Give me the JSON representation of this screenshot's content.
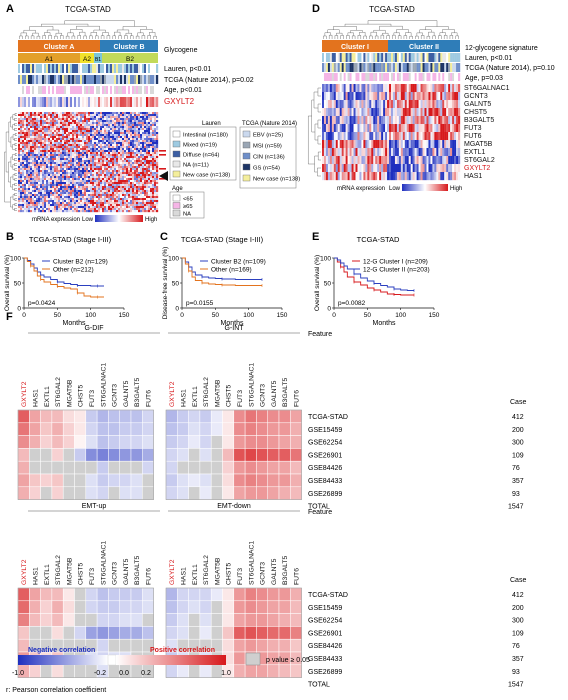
{
  "panels": {
    "A": {
      "letter": "A",
      "title": "TCGA-STAD",
      "cluster_a": "Cluster A",
      "cluster_b": "Cluster B",
      "sub_a1": "A1",
      "sub_a2": "A2",
      "sub_b1": "B1",
      "sub_b2": "B2",
      "row_labels": [
        "Glycogene",
        "Lauren, p<0.01",
        "TCGA (Nature 2014), p=0.02",
        "Age, p<0.01",
        "GXYLT2"
      ],
      "legend_lauren_title": "Lauren",
      "legend_lauren": [
        "Intestinal (n=180)",
        "Mixed (n=19)",
        "Diffuse (n=64)",
        "NA (n=11)",
        "New case (n=138)"
      ],
      "legend_tcga_title": "TCGA (Nature 2014)",
      "legend_tcga": [
        "EBV (n=25)",
        "MSI (n=59)",
        "CIN (n=136)",
        "GS (n=54)",
        "New case (n=138)"
      ],
      "legend_age_title": "Age",
      "legend_age": [
        "<65",
        "≥65",
        "NA"
      ],
      "scale_label": "mRNA expression",
      "scale_low": "Low",
      "scale_high": "High"
    },
    "B": {
      "letter": "B",
      "title": "TCGA-STAD (Stage I-III)",
      "ylabel": "Overall survival (%)",
      "xlabel": "Months",
      "legend": [
        "Cluster B2 (n=129)",
        "Other (n=212)"
      ],
      "pvalue": "p=0.0424"
    },
    "C": {
      "letter": "C",
      "title": "TCGA-STAD (Stage I-III)",
      "ylabel": "Disease-free survival (%)",
      "xlabel": "Months",
      "legend": [
        "Cluster B2 (n=109)",
        "Other (n=169)"
      ],
      "pvalue": "p=0.0155"
    },
    "D": {
      "letter": "D",
      "title": "TCGA-STAD",
      "cluster_1": "Cluster I",
      "cluster_2": "Cluster II",
      "row_labels": [
        "12-glycogene signature",
        "Lauren, p<0.01",
        "TCGA (Nature 2014), p=0.10",
        "Age, p=0.03"
      ],
      "genes": [
        "ST6GALNAC1",
        "GCNT3",
        "GALNT5",
        "CHST5",
        "B3GALT5",
        "FUT3",
        "FUT6",
        "MGAT5B",
        "EXTL1",
        "ST6GAL2",
        "GXYLT2",
        "HAS1"
      ],
      "scale_label": "mRNA expression",
      "scale_low": "Low",
      "scale_high": "High"
    },
    "E": {
      "letter": "E",
      "title": "TCGA-STAD",
      "ylabel": "Overall survival (%)",
      "xlabel": "Months",
      "legend": [
        "12-G Cluster I (n=209)",
        "12-G Cluster II (n=203)"
      ],
      "pvalue": "p=0.0082"
    },
    "F": {
      "letter": "F",
      "feature_label": "Feature",
      "case_label": "Case",
      "genes": [
        "GXYLT2",
        "HAS1",
        "EXTL1",
        "ST6GAL2",
        "MGAT5B",
        "CHST5",
        "FUT3",
        "ST6GALNAC1",
        "GCNT3",
        "GALNT5",
        "B3GALT5",
        "FUT6"
      ],
      "datasets": [
        "TCGA-STAD",
        "GSE15459",
        "GSE62254",
        "GSE26901",
        "GSE84426",
        "GSE84433",
        "GSE26899"
      ],
      "cases": [
        "412",
        "200",
        "300",
        "109",
        "76",
        "357",
        "93"
      ],
      "total_label": "TOTAL",
      "total_value": "1547",
      "top_left": "G-DIF",
      "top_right": "G-INT",
      "bottom_left": "EMT-up",
      "bottom_right": "EMT-down",
      "neg_label": "Negative correlation",
      "pos_label": "Positive correlation",
      "ticks": [
        "-1.0",
        "-0.2",
        "0.0",
        "0.2",
        "1.0"
      ],
      "pval_label": "p value ≥ 0.05",
      "footnote": "r: Pearson correlation coefficient"
    }
  },
  "colors": {
    "red": "#d7191c",
    "blue": "#2b3fbf",
    "orange": "#e3731e",
    "steel": "#2f7db8",
    "lime": "#c2da5a",
    "yellow": "#f2e22a",
    "insig": "#cfcfcf"
  },
  "chart_data": [
    {
      "type": "line",
      "title": "TCGA-STAD (Stage I-III)",
      "xlabel": "Months",
      "ylabel": "Overall survival (%)",
      "xlim": [
        0,
        150
      ],
      "ylim": [
        0,
        100
      ],
      "xticks": [
        0,
        50,
        100,
        150
      ],
      "yticks": [
        0,
        50,
        100
      ],
      "series": [
        {
          "name": "Cluster B2 (n=129)",
          "x": [
            0,
            5,
            10,
            15,
            20,
            25,
            30,
            40,
            50,
            60,
            70,
            80,
            90,
            100,
            110,
            120
          ],
          "y": [
            100,
            95,
            88,
            80,
            72,
            66,
            62,
            57,
            52,
            49,
            47,
            45,
            45,
            44,
            44,
            44
          ]
        },
        {
          "name": "Other (n=212)",
          "x": [
            0,
            5,
            10,
            15,
            20,
            25,
            30,
            40,
            50,
            60,
            70,
            80,
            90,
            100,
            110,
            120
          ],
          "y": [
            100,
            93,
            84,
            74,
            64,
            57,
            52,
            47,
            43,
            40,
            38,
            30,
            24,
            22,
            22,
            22
          ]
        }
      ],
      "pvalue": "p=0.0424"
    },
    {
      "type": "line",
      "title": "TCGA-STAD (Stage I-III)",
      "xlabel": "Months",
      "ylabel": "Disease-free survival (%)",
      "xlim": [
        0,
        150
      ],
      "ylim": [
        0,
        100
      ],
      "xticks": [
        0,
        50,
        100,
        150
      ],
      "yticks": [
        0,
        50,
        100
      ],
      "series": [
        {
          "name": "Cluster B2 (n=109)",
          "x": [
            0,
            5,
            10,
            15,
            20,
            30,
            40,
            50,
            60,
            80,
            100,
            120
          ],
          "y": [
            100,
            92,
            82,
            72,
            66,
            62,
            60,
            59,
            58,
            57,
            57,
            57
          ]
        },
        {
          "name": "Other (n=169)",
          "x": [
            0,
            5,
            10,
            15,
            20,
            30,
            40,
            50,
            60,
            80,
            100,
            120
          ],
          "y": [
            100,
            88,
            74,
            62,
            55,
            50,
            48,
            47,
            46,
            45,
            45,
            45
          ]
        }
      ],
      "pvalue": "p=0.0155"
    },
    {
      "type": "line",
      "title": "TCGA-STAD",
      "xlabel": "Months",
      "ylabel": "Overall survival (%)",
      "xlim": [
        0,
        150
      ],
      "ylim": [
        0,
        100
      ],
      "xticks": [
        0,
        50,
        100,
        150
      ],
      "yticks": [
        0,
        50,
        100
      ],
      "series": [
        {
          "name": "12-G Cluster I (n=209)",
          "x": [
            0,
            5,
            10,
            15,
            20,
            30,
            40,
            50,
            60,
            70,
            80,
            90,
            100,
            110,
            120
          ],
          "y": [
            100,
            92,
            82,
            72,
            62,
            52,
            46,
            40,
            36,
            32,
            28,
            27,
            26,
            26,
            26
          ]
        },
        {
          "name": "12-G Cluster II (n=203)",
          "x": [
            0,
            5,
            10,
            15,
            20,
            30,
            40,
            50,
            60,
            70,
            80,
            90,
            100,
            110,
            120
          ],
          "y": [
            100,
            96,
            90,
            84,
            78,
            68,
            60,
            54,
            49,
            45,
            42,
            38,
            36,
            35,
            35
          ]
        }
      ],
      "pvalue": "p=0.0082"
    },
    {
      "type": "heatmap",
      "title": "G-DIF",
      "x": [
        "GXYLT2",
        "HAS1",
        "EXTL1",
        "ST6GAL2",
        "MGAT5B",
        "CHST5",
        "FUT3",
        "ST6GALNAC1",
        "GCNT3",
        "GALNT5",
        "B3GALT5",
        "FUT6"
      ],
      "y": [
        "TCGA-STAD",
        "GSE15459",
        "GSE62254",
        "GSE26901",
        "GSE84426",
        "GSE84433",
        "GSE26899"
      ],
      "z": [
        [
          0.7,
          0.4,
          0.3,
          0.3,
          0.15,
          0.1,
          -0.25,
          -0.35,
          -0.3,
          -0.3,
          -0.3,
          -0.2
        ],
        [
          0.6,
          0.4,
          0.25,
          0.35,
          0.2,
          0.1,
          -0.2,
          -0.3,
          -0.3,
          -0.25,
          -0.25,
          -0.2
        ],
        [
          0.5,
          0.35,
          0.2,
          0.3,
          0.2,
          0.05,
          -0.15,
          -0.3,
          -0.25,
          -0.2,
          -0.2,
          -0.15
        ],
        [
          0.3,
          null,
          null,
          0.2,
          null,
          -0.25,
          -0.55,
          -0.6,
          -0.55,
          -0.5,
          -0.5,
          -0.4
        ],
        [
          0.35,
          null,
          null,
          null,
          null,
          null,
          null,
          -0.25,
          null,
          null,
          null,
          -0.2
        ],
        [
          0.4,
          0.25,
          0.2,
          0.25,
          null,
          null,
          -0.15,
          -0.25,
          -0.2,
          -0.2,
          -0.15,
          null
        ],
        [
          0.35,
          0.2,
          null,
          0.2,
          null,
          null,
          -0.15,
          -0.2,
          null,
          -0.15,
          -0.15,
          null
        ]
      ],
      "zlim": [
        -1.0,
        1.0
      ],
      "null_meaning": "p value ≥ 0.05"
    },
    {
      "type": "heatmap",
      "title": "G-INT",
      "x": [
        "GXYLT2",
        "HAS1",
        "EXTL1",
        "ST6GAL2",
        "MGAT5B",
        "CHST5",
        "FUT3",
        "ST6GALNAC1",
        "GCNT3",
        "GALNT5",
        "B3GALT5",
        "FUT6"
      ],
      "y": [
        "TCGA-STAD",
        "GSE15459",
        "GSE62254",
        "GSE26901",
        "GSE84426",
        "GSE84433",
        "GSE26899"
      ],
      "z": [
        [
          -0.35,
          -0.25,
          -0.2,
          -0.25,
          -0.1,
          0.1,
          0.5,
          0.6,
          0.55,
          0.5,
          0.5,
          0.4
        ],
        [
          -0.3,
          -0.25,
          -0.15,
          -0.2,
          -0.1,
          0.1,
          0.5,
          0.55,
          0.5,
          0.45,
          0.45,
          0.35
        ],
        [
          -0.25,
          -0.2,
          -0.1,
          -0.2,
          null,
          0.1,
          0.45,
          0.5,
          0.5,
          0.45,
          0.4,
          0.35
        ],
        [
          -0.2,
          -0.15,
          null,
          -0.15,
          null,
          0.3,
          0.75,
          0.8,
          0.75,
          0.7,
          0.7,
          0.6
        ],
        [
          -0.2,
          null,
          null,
          null,
          null,
          0.2,
          0.45,
          0.5,
          0.45,
          0.4,
          0.4,
          0.3
        ],
        [
          -0.25,
          -0.15,
          -0.1,
          -0.15,
          null,
          0.15,
          0.5,
          0.55,
          0.5,
          0.45,
          0.45,
          0.35
        ],
        [
          -0.2,
          -0.15,
          null,
          -0.1,
          null,
          0.1,
          0.4,
          0.45,
          0.45,
          0.4,
          0.35,
          0.3
        ]
      ],
      "zlim": [
        -1.0,
        1.0
      ],
      "null_meaning": "p value ≥ 0.05"
    },
    {
      "type": "heatmap",
      "title": "EMT-up",
      "x": [
        "GXYLT2",
        "HAS1",
        "EXTL1",
        "ST6GAL2",
        "MGAT5B",
        "CHST5",
        "FUT3",
        "ST6GALNAC1",
        "GCNT3",
        "GALNT5",
        "B3GALT5",
        "FUT6"
      ],
      "y": [
        "TCGA-STAD",
        "GSE15459",
        "GSE62254",
        "GSE26901",
        "GSE84426",
        "GSE84433",
        "GSE26899"
      ],
      "z": [
        [
          0.7,
          0.4,
          0.3,
          0.3,
          0.1,
          null,
          -0.2,
          -0.3,
          -0.25,
          -0.25,
          -0.25,
          -0.15
        ],
        [
          0.65,
          0.35,
          0.2,
          0.35,
          0.15,
          null,
          -0.2,
          -0.25,
          -0.25,
          -0.2,
          -0.2,
          -0.15
        ],
        [
          0.55,
          0.3,
          0.2,
          0.3,
          0.1,
          null,
          null,
          -0.2,
          -0.2,
          -0.15,
          -0.15,
          null
        ],
        [
          0.25,
          null,
          null,
          0.15,
          null,
          -0.2,
          -0.45,
          -0.5,
          -0.45,
          -0.4,
          -0.4,
          -0.3
        ],
        [
          0.3,
          null,
          null,
          null,
          null,
          null,
          null,
          -0.2,
          null,
          null,
          null,
          null
        ],
        [
          0.45,
          0.25,
          0.15,
          0.25,
          null,
          null,
          -0.15,
          -0.2,
          -0.15,
          -0.15,
          null,
          null
        ],
        [
          0.35,
          0.2,
          null,
          0.15,
          null,
          null,
          null,
          -0.15,
          null,
          null,
          null,
          null
        ]
      ],
      "zlim": [
        -1.0,
        1.0
      ],
      "null_meaning": "p value ≥ 0.05"
    },
    {
      "type": "heatmap",
      "title": "EMT-down",
      "x": [
        "GXYLT2",
        "HAS1",
        "EXTL1",
        "ST6GAL2",
        "MGAT5B",
        "CHST5",
        "FUT3",
        "ST6GALNAC1",
        "GCNT3",
        "GALNT5",
        "B3GALT5",
        "FUT6"
      ],
      "y": [
        "TCGA-STAD",
        "GSE15459",
        "GSE62254",
        "GSE26901",
        "GSE84426",
        "GSE84433",
        "GSE26899"
      ],
      "z": [
        [
          -0.35,
          -0.2,
          -0.2,
          -0.2,
          -0.1,
          0.1,
          0.45,
          0.55,
          0.5,
          0.45,
          0.45,
          0.35
        ],
        [
          -0.3,
          -0.2,
          -0.15,
          -0.2,
          null,
          0.1,
          0.45,
          0.5,
          0.45,
          0.4,
          0.4,
          0.3
        ],
        [
          -0.25,
          -0.15,
          null,
          -0.15,
          null,
          0.1,
          0.4,
          0.45,
          0.45,
          0.4,
          0.35,
          0.3
        ],
        [
          -0.2,
          -0.15,
          null,
          -0.1,
          null,
          0.25,
          0.7,
          0.75,
          0.7,
          0.65,
          0.65,
          0.55
        ],
        [
          -0.15,
          null,
          null,
          null,
          null,
          0.15,
          0.4,
          0.45,
          0.4,
          0.35,
          0.35,
          0.25
        ],
        [
          -0.25,
          -0.15,
          null,
          -0.15,
          null,
          0.15,
          0.45,
          0.5,
          0.45,
          0.4,
          0.4,
          0.3
        ],
        [
          -0.2,
          -0.1,
          null,
          -0.1,
          null,
          0.1,
          0.35,
          0.4,
          0.4,
          0.35,
          0.3,
          0.25
        ]
      ],
      "zlim": [
        -1.0,
        1.0
      ],
      "null_meaning": "p value ≥ 0.05"
    }
  ]
}
